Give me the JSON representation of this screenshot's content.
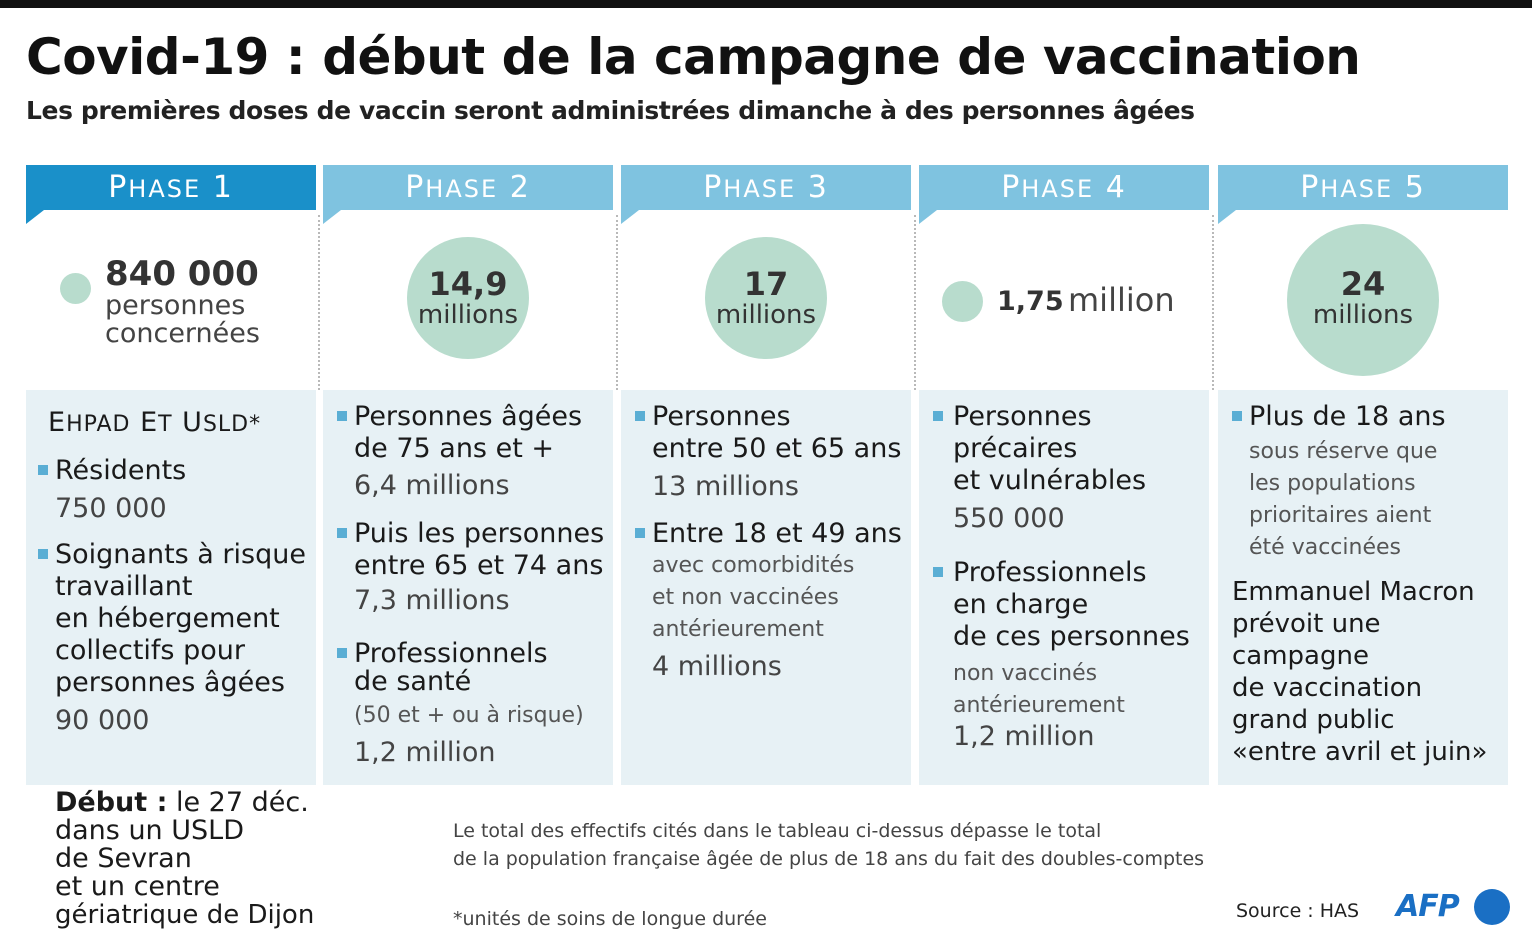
{
  "header": {
    "title": "Covid-19 : début de la campagne de vaccination",
    "subtitle": "Les premières doses de vaccin seront administrées dimanche à des personnes âgées"
  },
  "colors": {
    "phase_active": "#1a90c9",
    "phase_inactive": "#7fc3e0",
    "circle": "#b8dccd",
    "panel": "#e7f1f5",
    "bullet": "#5aaed4",
    "afp": "#1a6fc4"
  },
  "phases": [
    {
      "word": "Phase",
      "num": "1",
      "total_number": "840 000",
      "total_unit_1": "personnes",
      "total_unit_2": "concernées",
      "group_title": "Ehpad et USLD*",
      "items": [
        {
          "lines": [
            "Résidents"
          ],
          "value": "750 000"
        },
        {
          "lines": [
            "Soignants à risque",
            "travaillant",
            "en hébergement",
            "collectifs pour",
            "personnes âgées"
          ],
          "value": "90 000"
        }
      ],
      "start_bold": "Début :",
      "start_lines": [
        "le 27 déc.",
        "dans un USLD",
        "de Sevran",
        "et un centre",
        "gériatrique de Dijon"
      ]
    },
    {
      "word": "Phase",
      "num": "2",
      "total_number": "14,9",
      "total_unit": "millions",
      "items": [
        {
          "lines": [
            "Personnes âgées",
            "de 75 ans et +"
          ],
          "value": "6,4 millions"
        },
        {
          "lines": [
            "Puis les personnes",
            "entre 65 et 74 ans"
          ],
          "value": "7,3 millions"
        },
        {
          "lines": [
            "Professionnels",
            "de santé"
          ],
          "note": "(50 et + ou à risque)",
          "value": "1,2 million"
        }
      ]
    },
    {
      "word": "Phase",
      "num": "3",
      "total_number": "17",
      "total_unit": "millions",
      "items": [
        {
          "lines": [
            "Personnes",
            "entre 50 et 65 ans"
          ],
          "value": "13 millions"
        },
        {
          "lines": [
            "Entre 18 et 49 ans"
          ],
          "note_lines": [
            "avec comorbidités",
            "et non vaccinées",
            "antérieurement"
          ],
          "value": "4 millions"
        }
      ]
    },
    {
      "word": "Phase",
      "num": "4",
      "total_number": "1,75",
      "total_unit": "million",
      "items": [
        {
          "lines": [
            "Personnes",
            "précaires",
            "et vulnérables"
          ],
          "value": "550 000"
        },
        {
          "lines": [
            "Professionnels",
            "en charge",
            "de ces personnes"
          ],
          "note_lines": [
            "non vaccinés",
            "antérieurement"
          ],
          "value": "1,2 million"
        }
      ]
    },
    {
      "word": "Phase",
      "num": "5",
      "total_number": "24",
      "total_unit": "millions",
      "items": [
        {
          "lines": [
            "Plus de 18 ans"
          ],
          "note_lines": [
            "sous réserve que",
            "les populations",
            "prioritaires aient",
            "été vaccinées"
          ]
        }
      ],
      "macron_lines": [
        "Emmanuel Macron",
        "prévoit une",
        "campagne",
        "de vaccination",
        "grand public",
        "«entre avril et juin»"
      ]
    }
  ],
  "footer": {
    "note_1": "Le total des effectifs cités dans le tableau ci-dessus dépasse le total",
    "note_2": "de la population française âgée de plus de 18 ans du fait des doubles-comptes",
    "footnote": "*unités de soins de longue durée",
    "source": "Source : HAS",
    "brand": "AFP"
  }
}
